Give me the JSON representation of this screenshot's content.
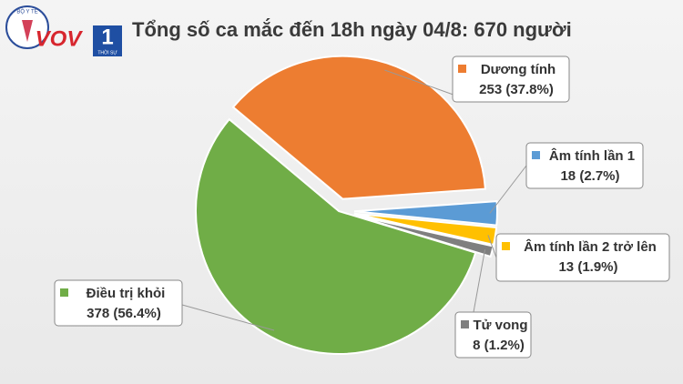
{
  "logo": {
    "seal": "BỘ Y TẾ",
    "brand": "VOV",
    "channel": "1",
    "program": "THỜI SỰ"
  },
  "chart_data": {
    "type": "pie",
    "title": "Tổng số ca mắc đến 18h ngày 04/8: 670 người",
    "categories": [
      "Dương tính",
      "Âm tính lần 1",
      "Âm tính lần 2 trở lên",
      "Tử vong",
      "Điều trị khỏi"
    ],
    "values": [
      253,
      18,
      13,
      8,
      378
    ],
    "value_labels": [
      "253 (37.8%)",
      "18 (2.7%)",
      "13 (1.9%)",
      "8 (1.2%)",
      "378 (56.4%)"
    ],
    "colors": [
      "#ed7d31",
      "#5b9bd5",
      "#ffc000",
      "#7f7f7f",
      "#70ad47"
    ]
  }
}
